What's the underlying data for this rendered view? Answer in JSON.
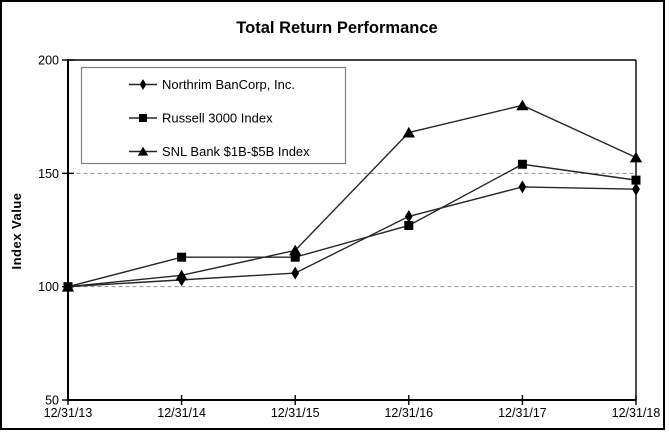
{
  "chart_data": {
    "type": "line",
    "title": "Total Return Performance",
    "xlabel": "",
    "ylabel": "Index Value",
    "x_tick_labels": [
      "12/31/13",
      "12/31/14",
      "12/31/15",
      "12/31/16",
      "12/31/17",
      "12/31/18"
    ],
    "y_ticks": [
      50,
      100,
      150,
      200
    ],
    "ylim": [
      50,
      200
    ],
    "gridlines_y": [
      100,
      150
    ],
    "grid_style": "dashed",
    "legend_position": "top-left-inside",
    "series": [
      {
        "name": "Northrim BanCorp, Inc.",
        "marker": "diamond",
        "values": [
          100,
          103,
          106,
          131,
          144,
          143
        ]
      },
      {
        "name": "Russell 3000 Index",
        "marker": "square",
        "values": [
          100,
          113,
          113,
          127,
          154,
          147
        ]
      },
      {
        "name": "SNL Bank $1B-$5B Index",
        "marker": "triangle",
        "values": [
          100,
          105,
          116,
          168,
          180,
          157
        ]
      }
    ]
  },
  "colors": {
    "background": "#ffffff",
    "frame_border": "#000000",
    "axis": "#000000",
    "line": "#262626",
    "marker": "#000000",
    "grid": "#909090",
    "legend_border": "#808080",
    "text": "#000000"
  }
}
